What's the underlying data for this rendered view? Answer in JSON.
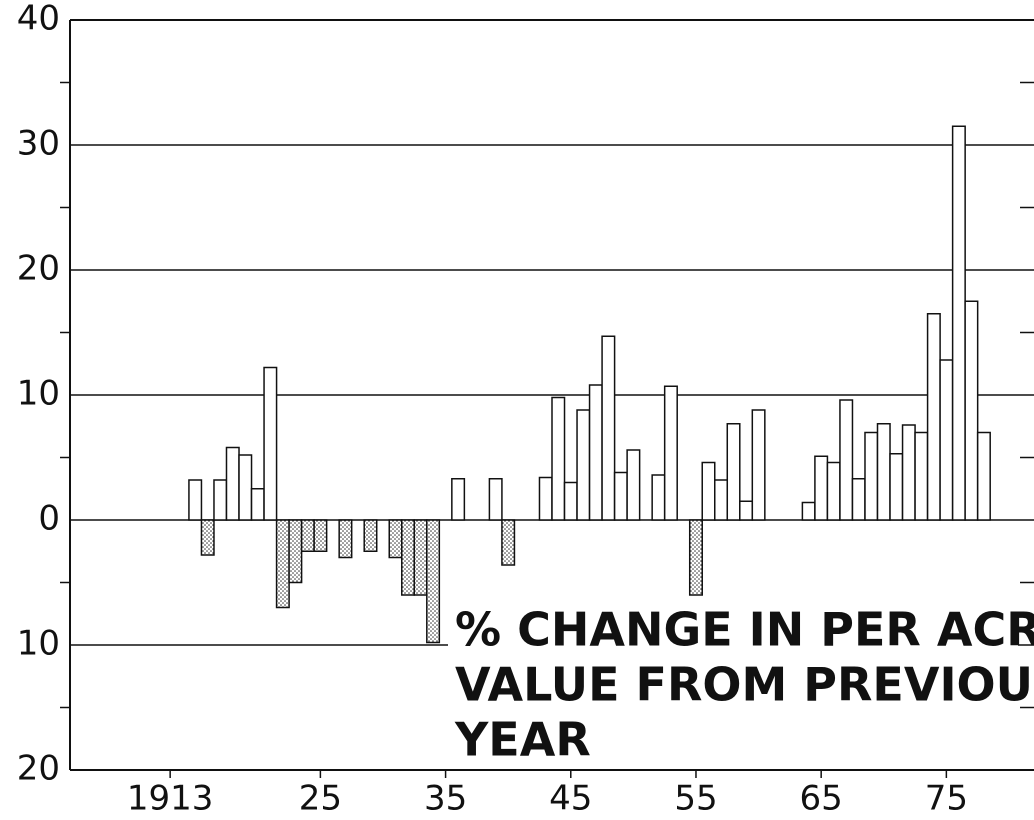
{
  "chart_data": {
    "type": "bar",
    "annotation": [
      "% CHANGE IN PER ACRE",
      "VALUE FROM PREVIOUS",
      "YEAR"
    ],
    "x": [
      1915,
      1916,
      1917,
      1918,
      1919,
      1920,
      1921,
      1922,
      1923,
      1924,
      1925,
      1927,
      1929,
      1931,
      1932,
      1933,
      1934,
      1936,
      1939,
      1940,
      1943,
      1944,
      1945,
      1946,
      1947,
      1948,
      1949,
      1950,
      1952,
      1953,
      1955,
      1956,
      1957,
      1958,
      1959,
      1960,
      1964,
      1965,
      1966,
      1967,
      1968,
      1969,
      1970,
      1971,
      1972,
      1973,
      1974,
      1975,
      1976,
      1977,
      1978
    ],
    "values": [
      3.2,
      -2.8,
      3.2,
      5.8,
      5.2,
      2.5,
      12.2,
      -7,
      -5,
      -2.5,
      -2.5,
      -3,
      -2.5,
      -3,
      -6,
      -6,
      -9.8,
      3.3,
      3.3,
      -3.6,
      3.4,
      9.8,
      3,
      8.8,
      10.8,
      14.7,
      3.8,
      5.6,
      3.6,
      10.7,
      -6,
      4.6,
      3.2,
      7.7,
      1.5,
      8.8,
      1.4,
      5.1,
      4.6,
      9.6,
      3.3,
      7,
      7.7,
      5.3,
      7.6,
      7,
      16.5,
      12.8,
      31.5,
      17.5,
      7
    ],
    "color": "#ffffff",
    "xlim": [
      1905,
      1982
    ],
    "xticks": [
      1913,
      {
        "value": 1925,
        "label": "25"
      },
      {
        "value": 1935,
        "label": "35"
      },
      {
        "value": 1945,
        "label": "45"
      },
      {
        "value": 1955,
        "label": "55"
      },
      {
        "value": 1965,
        "label": "65"
      },
      {
        "value": 1975,
        "label": "75"
      }
    ],
    "ylim": [
      -20,
      40
    ],
    "yticks": [
      40,
      30,
      20,
      10,
      0,
      {
        "value": -10,
        "label": "10"
      },
      {
        "value": -20,
        "label": "20"
      }
    ],
    "minor_yticks": [
      35,
      25,
      15,
      5,
      -5,
      -15
    ],
    "grid": true
  }
}
